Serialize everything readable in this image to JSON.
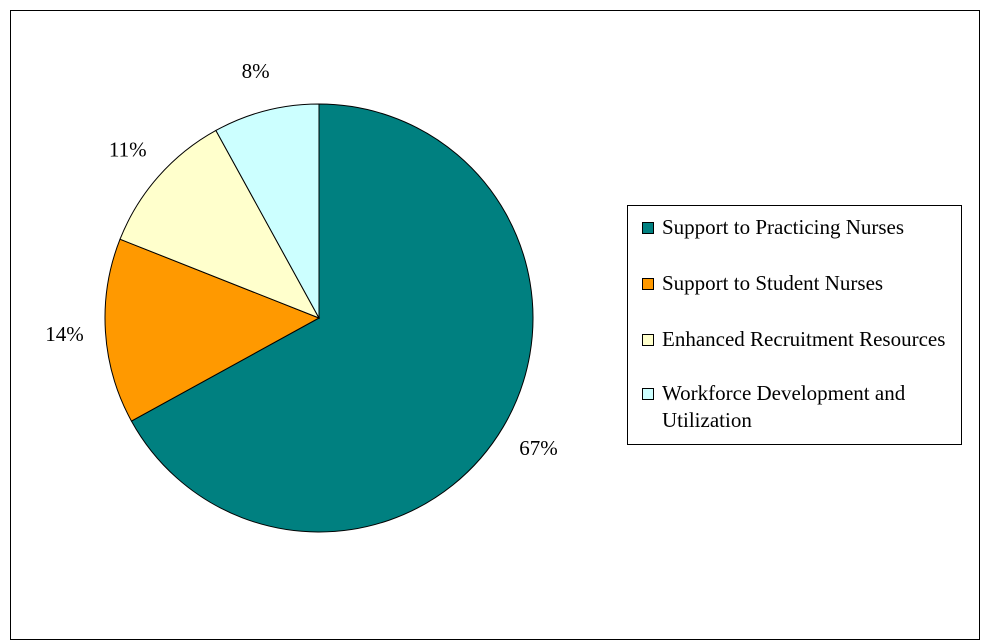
{
  "chart_data": {
    "type": "pie",
    "title": "",
    "categories": [
      "Support to Practicing Nurses",
      "Support to Student Nurses",
      "Enhanced Recruitment Resources",
      "Workforce Development and Utilization"
    ],
    "values": [
      67,
      14,
      11,
      8
    ],
    "labels": [
      "67%",
      "14%",
      "11%",
      "8%"
    ],
    "colors": [
      "#008080",
      "#FF9900",
      "#FFFFCC",
      "#CCFFFF"
    ],
    "start_angle_deg": 0,
    "direction": "clockwise",
    "legend_position": "right"
  }
}
